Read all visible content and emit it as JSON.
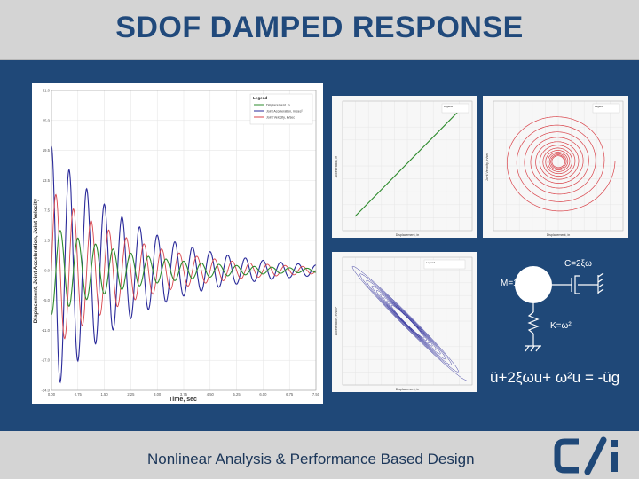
{
  "slide": {
    "title": "SDOF DAMPED RESPONSE",
    "footer": "Nonlinear Analysis & Performance Based Design",
    "logo_icon": "csi-logo-icon"
  },
  "colors": {
    "title": "#20497b",
    "background_blue": "#1f4878",
    "gray_band": "#d4d4d4",
    "displacement": "#2e8b2e",
    "acceleration": "#2a2a9a",
    "velocity": "#d9434a"
  },
  "main_chart": {
    "type": "line",
    "legend_title": "Legend",
    "legend": [
      {
        "label": "Displacement, in",
        "color": "#2e8b2e"
      },
      {
        "label": "Joint Acceleration, in/sec²",
        "color": "#2a2a9a"
      },
      {
        "label": "Joint Velocity, in/sec",
        "color": "#d9434a"
      }
    ],
    "ylabel": "Displacement, Joint Acceleration, Joint Velocity",
    "xlabel": "Time, sec",
    "yticks": [
      "31.0",
      "25.0",
      "19.5",
      "13.5",
      "7.5",
      "1.5",
      "0.0",
      "-5.0",
      "-11.0",
      "-17.0",
      "-24.0"
    ],
    "xticks": [
      "0.00",
      "0.75",
      "1.50",
      "2.25",
      "3.00",
      "3.75",
      "4.50",
      "5.25",
      "6.00",
      "6.75",
      "7.50"
    ]
  },
  "small_charts": {
    "top_left": {
      "xlabel": "Displacement, in",
      "ylabel": "Acceleration, in",
      "legend_title": "Legend"
    },
    "top_right": {
      "xlabel": "Displacement, in",
      "ylabel": "Joint Velocity, in/sec",
      "legend_title": "Legend"
    },
    "bottom": {
      "xlabel": "Displacement, in",
      "ylabel": "Acceleration, in/sec²",
      "legend_title": "Legend"
    }
  },
  "diagram": {
    "damper_label": "C=2ξω",
    "mass_label": "M=1",
    "spring_label": "K=ω²",
    "equation": "ü+2ξωu+ ω²u = -üg"
  }
}
